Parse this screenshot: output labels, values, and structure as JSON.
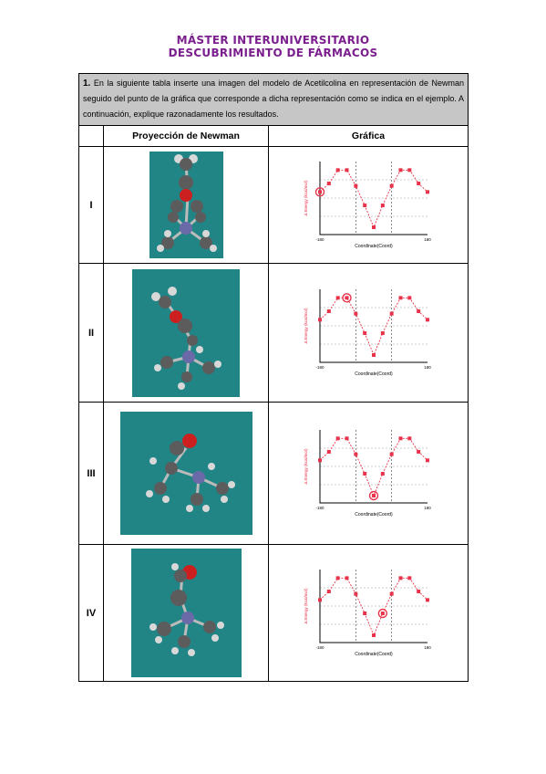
{
  "header": {
    "line1": "MÁSTER INTERUNIVERSITARIO",
    "line2": "DESCUBRIMIENTO DE FÁRMACOS"
  },
  "instructions": {
    "number": "1.",
    "text": "En la siguiente tabla inserte una imagen del modelo de Acetilcolina en representación de Newman seguido del punto de la gráfica que corresponde a dicha representación como se indica en el ejemplo. A continuación, explique razonadamente los resultados."
  },
  "table": {
    "col_projection": "Proyección de Newman",
    "col_graph": "Gráfica",
    "rows": [
      {
        "label": "I"
      },
      {
        "label": "II"
      },
      {
        "label": "III"
      },
      {
        "label": "IV"
      }
    ]
  },
  "graph_text": {
    "ylabel": "Relative E. (kcal/mol)",
    "ylabel_alt": "Δ Energy (kcal/mol)",
    "xlabel": "Coordinate(Coord)",
    "x_tick_start": "-180",
    "x_tick_end": "180"
  },
  "colors": {
    "header": "#7b1f8e",
    "instruction_bg": "#c6c6c6",
    "molecule_bg": "#218585",
    "curve": "#e8334a",
    "carbon": "#5c5c5c",
    "oxygen": "#cc1f1f",
    "nitrogen": "#6a6aa8",
    "hydrogen": "#d8d8d8"
  },
  "chart_data": [
    {
      "type": "line",
      "x": [
        -180,
        -150,
        -120,
        -90,
        -60,
        -30,
        0,
        30,
        60,
        90,
        120,
        150,
        180
      ],
      "values": [
        3.5,
        4.2,
        5.3,
        5.3,
        4.0,
        2.4,
        0.6,
        2.4,
        4.0,
        5.3,
        5.3,
        4.2,
        3.5
      ],
      "highlight_index": 0
    },
    {
      "type": "line",
      "x": [
        -180,
        -150,
        -120,
        -90,
        -60,
        -30,
        0,
        30,
        60,
        90,
        120,
        150,
        180
      ],
      "values": [
        3.5,
        4.2,
        5.3,
        5.3,
        4.0,
        2.4,
        0.6,
        2.4,
        4.0,
        5.3,
        5.3,
        4.2,
        3.5
      ],
      "highlight_index": 3
    },
    {
      "type": "line",
      "x": [
        -180,
        -150,
        -120,
        -90,
        -60,
        -30,
        0,
        30,
        60,
        90,
        120,
        150,
        180
      ],
      "values": [
        3.5,
        4.2,
        5.3,
        5.3,
        4.0,
        2.4,
        0.6,
        2.4,
        4.0,
        5.3,
        5.3,
        4.2,
        3.5
      ],
      "highlight_index": 6
    },
    {
      "type": "line",
      "x": [
        -180,
        -150,
        -120,
        -90,
        -60,
        -30,
        0,
        30,
        60,
        90,
        120,
        150,
        180
      ],
      "values": [
        3.5,
        4.2,
        5.3,
        5.3,
        4.0,
        2.4,
        0.6,
        2.4,
        4.0,
        5.3,
        5.3,
        4.2,
        3.5
      ],
      "highlight_index": 7
    }
  ]
}
